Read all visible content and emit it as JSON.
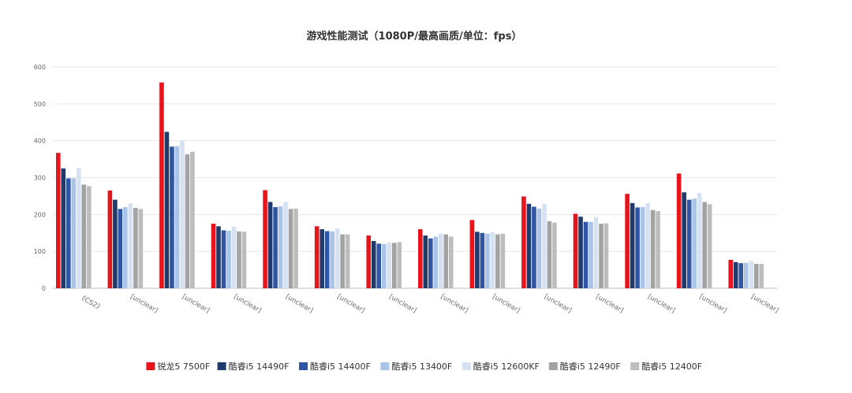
{
  "chart_data": {
    "type": "bar",
    "title": "游戏性能测试（1080P/最高画质/单位：fps）",
    "xlabel": "",
    "ylabel": "",
    "ylim": [
      0,
      600
    ],
    "yticks": [
      0,
      100,
      200,
      300,
      400,
      500,
      600
    ],
    "grid": true,
    "legend_position": "bottom",
    "categories": [
      "《CS2》",
      "[unclear]",
      "[unclear]",
      "[unclear]",
      "[unclear]",
      "[unclear]",
      "[unclear]",
      "[unclear]",
      "[unclear]",
      "[unclear]",
      "[unclear]",
      "[unclear]",
      "[unclear]",
      "[unclear]"
    ],
    "series": [
      {
        "name": "锐龙5 7500F",
        "color": "#e8141b",
        "values": [
          367,
          265,
          558,
          175,
          266,
          168,
          143,
          160,
          185,
          249,
          202,
          256,
          311,
          77
        ]
      },
      {
        "name": "酷睿i5 14490F",
        "color": "#1f3a6b",
        "values": [
          325,
          240,
          424,
          168,
          234,
          160,
          128,
          143,
          153,
          229,
          194,
          231,
          260,
          71
        ]
      },
      {
        "name": "酷睿i5 14400F",
        "color": "#2f55a4",
        "values": [
          298,
          215,
          384,
          157,
          220,
          155,
          121,
          135,
          150,
          221,
          180,
          219,
          240,
          68
        ]
      },
      {
        "name": "酷睿i5 13400F",
        "color": "#a9c4e8",
        "values": [
          298,
          220,
          385,
          156,
          222,
          154,
          120,
          140,
          148,
          216,
          180,
          220,
          243,
          69
        ]
      },
      {
        "name": "酷睿i5 12600KF",
        "color": "#d6e2f2",
        "values": [
          326,
          230,
          400,
          167,
          234,
          162,
          124,
          148,
          152,
          229,
          193,
          231,
          258,
          74
        ]
      },
      {
        "name": "酷睿i5 12490F",
        "color": "#a3a3a3",
        "values": [
          281,
          218,
          363,
          154,
          215,
          146,
          123,
          146,
          146,
          182,
          175,
          212,
          234,
          66
        ]
      },
      {
        "name": "酷睿i5 12400F",
        "color": "#bdbdbd",
        "values": [
          277,
          215,
          370,
          153,
          216,
          146,
          125,
          140,
          148,
          178,
          176,
          209,
          228,
          66
        ]
      }
    ]
  }
}
